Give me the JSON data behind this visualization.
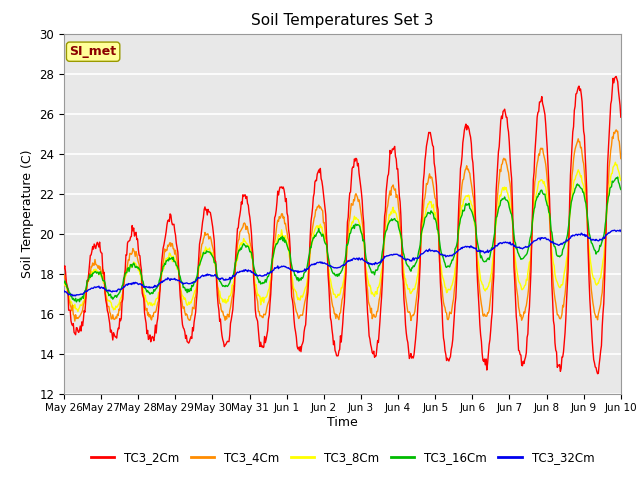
{
  "title": "Soil Temperatures Set 3",
  "xlabel": "Time",
  "ylabel": "Soil Temperature (C)",
  "ylim": [
    12,
    30
  ],
  "annotation_text": "SI_met",
  "annotation_color": "#8B0000",
  "annotation_bg": "#FFFF99",
  "plot_bg": "#E8E8E8",
  "grid_color": "#FFFFFF",
  "series_colors": [
    "#FF0000",
    "#FF8C00",
    "#FFFF00",
    "#00BB00",
    "#0000EE"
  ],
  "series_labels": [
    "TC3_2Cm",
    "TC3_4Cm",
    "TC3_8Cm",
    "TC3_16Cm",
    "TC3_32Cm"
  ],
  "x_tick_labels": [
    "May 26",
    "May 27",
    "May 28",
    "May 29",
    "May 30",
    "May 31",
    "Jun 1",
    "Jun 2",
    "Jun 3",
    "Jun 4",
    "Jun 5",
    "Jun 6",
    "Jun 7",
    "Jun 8",
    "Jun 9",
    "Jun 10"
  ],
  "n_days": 15,
  "pts_per_day": 48,
  "figsize": [
    6.4,
    4.8
  ],
  "dpi": 100
}
